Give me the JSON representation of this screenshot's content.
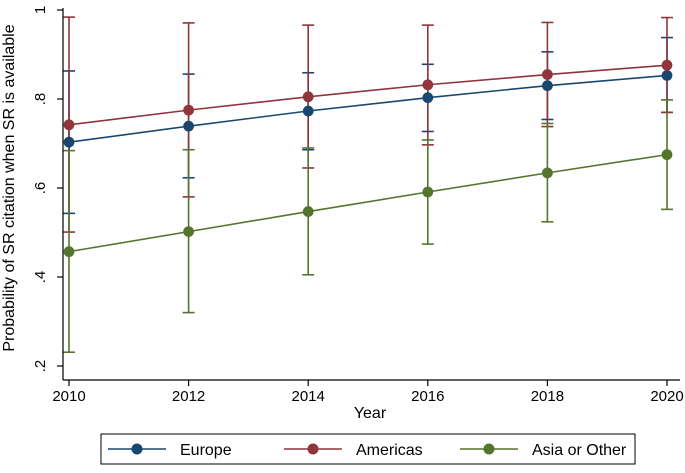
{
  "chart_data": {
    "type": "line",
    "title": "",
    "xlabel": "Year",
    "ylabel": "Probability of SR citation when SR is available",
    "x": [
      2010,
      2012,
      2014,
      2016,
      2018,
      2020
    ],
    "xticks": [
      2010,
      2012,
      2014,
      2016,
      2018,
      2020
    ],
    "xtick_labels": [
      "2010",
      "2012",
      "2014",
      "2016",
      "2018",
      "2020"
    ],
    "yticks": [
      0.2,
      0.4,
      0.6,
      0.8,
      1
    ],
    "ytick_labels": [
      ".2",
      ".4",
      ".6",
      ".8",
      "1"
    ],
    "xlim": [
      2010,
      2020
    ],
    "ylim": [
      0.2,
      1.0
    ],
    "grid": false,
    "legend_position": "bottom",
    "series": [
      {
        "name": "Europe",
        "color": "#1a476f",
        "values": [
          0.703,
          0.739,
          0.773,
          0.803,
          0.83,
          0.853
        ],
        "ci_low": [
          0.543,
          0.623,
          0.686,
          0.727,
          0.754,
          0.77
        ],
        "ci_high": [
          0.863,
          0.856,
          0.859,
          0.878,
          0.906,
          0.938
        ]
      },
      {
        "name": "Americas",
        "color": "#90353b",
        "values": [
          0.742,
          0.775,
          0.805,
          0.832,
          0.855,
          0.876
        ],
        "ci_low": [
          0.501,
          0.58,
          0.645,
          0.697,
          0.738,
          0.77
        ],
        "ci_high": [
          0.984,
          0.971,
          0.966,
          0.966,
          0.972,
          0.983
        ]
      },
      {
        "name": "Asia or Other",
        "color": "#55752f",
        "values": [
          0.457,
          0.502,
          0.547,
          0.591,
          0.634,
          0.675
        ],
        "ci_low": [
          0.231,
          0.32,
          0.405,
          0.474,
          0.524,
          0.552
        ],
        "ci_high": [
          0.684,
          0.686,
          0.69,
          0.708,
          0.745,
          0.798
        ]
      }
    ]
  }
}
